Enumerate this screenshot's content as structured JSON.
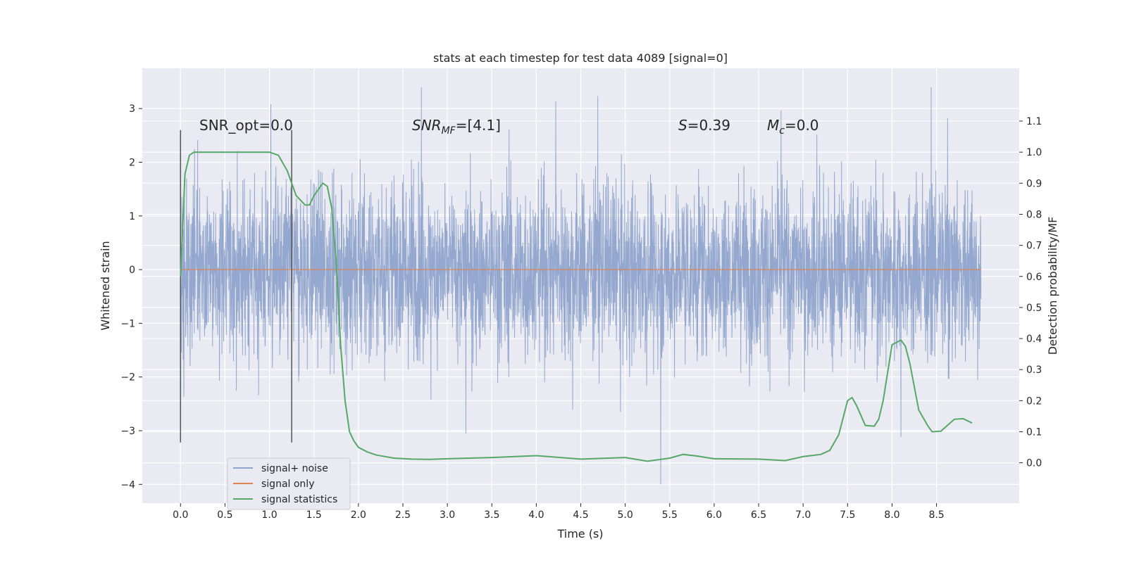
{
  "chart_data": {
    "type": "line",
    "title": "stats at each timestep for test data 4089 [signal=0]",
    "xlabel": "Time (s)",
    "ylabel": "Whitened strain",
    "y2label": "Detection probability/MF",
    "xlim": [
      -0.43,
      9.43
    ],
    "ylim": [
      -4.35,
      3.75
    ],
    "y2lim": [
      -0.13,
      1.27
    ],
    "x_ticks": [
      0.0,
      0.5,
      1.0,
      1.5,
      2.0,
      2.5,
      3.0,
      3.5,
      4.0,
      4.5,
      5.0,
      5.5,
      6.0,
      6.5,
      7.0,
      7.5,
      8.0,
      8.5
    ],
    "x_tick_labels": [
      "0.0",
      "0.5",
      "1.0",
      "1.5",
      "2.0",
      "2.5",
      "3.0",
      "3.5",
      "4.0",
      "4.5",
      "5.0",
      "5.5",
      "6.0",
      "6.5",
      "7.0",
      "7.5",
      "8.0",
      "8.5"
    ],
    "y_ticks": [
      3,
      2,
      1,
      0,
      -1,
      -2,
      -3,
      -4
    ],
    "y_tick_labels": [
      "3",
      "2",
      "1",
      "0",
      "−1",
      "−2",
      "−3",
      "−4"
    ],
    "y2_ticks": [
      1.1,
      1.0,
      0.9,
      0.8,
      0.7,
      0.6,
      0.5,
      0.4,
      0.3,
      0.2,
      0.1,
      0.0
    ],
    "y2_tick_labels": [
      "1.1",
      "1.0",
      "0.9",
      "0.8",
      "0.7",
      "0.6",
      "0.5",
      "0.4",
      "0.3",
      "0.2",
      "0.1",
      "0.0"
    ],
    "grid": true,
    "legend_position": "lower-left",
    "series": [
      {
        "name": "signal+ noise",
        "color": "#8fa4cc",
        "axis": "left",
        "kind": "noise",
        "x_range": [
          0.0,
          9.0
        ],
        "typical_amplitude": 1.6,
        "peak_range": [
          -4.0,
          3.4
        ]
      },
      {
        "name": "signal only",
        "color": "#dd8452",
        "axis": "left",
        "x": [
          0.0,
          9.0
        ],
        "y": [
          0.0,
          0.0
        ]
      },
      {
        "name": "signal statistics",
        "color": "#55a868",
        "axis": "right",
        "x": [
          0.0,
          0.05,
          0.1,
          0.15,
          0.25,
          0.5,
          0.75,
          1.0,
          1.1,
          1.2,
          1.3,
          1.4,
          1.45,
          1.5,
          1.6,
          1.65,
          1.7,
          1.75,
          1.8,
          1.85,
          1.9,
          1.95,
          2.0,
          2.1,
          2.2,
          2.4,
          2.6,
          2.8,
          3.0,
          3.5,
          4.0,
          4.5,
          5.0,
          5.25,
          5.5,
          5.65,
          5.8,
          6.0,
          6.5,
          6.8,
          7.0,
          7.2,
          7.3,
          7.4,
          7.5,
          7.55,
          7.6,
          7.7,
          7.8,
          7.85,
          7.9,
          8.0,
          8.1,
          8.15,
          8.2,
          8.3,
          8.4,
          8.45,
          8.55,
          8.7,
          8.8,
          8.9
        ],
        "y": [
          0.6,
          0.93,
          0.99,
          1.0,
          1.0,
          1.0,
          1.0,
          1.0,
          0.99,
          0.94,
          0.86,
          0.83,
          0.83,
          0.86,
          0.9,
          0.89,
          0.82,
          0.65,
          0.38,
          0.2,
          0.1,
          0.07,
          0.05,
          0.035,
          0.025,
          0.015,
          0.012,
          0.011,
          0.013,
          0.017,
          0.023,
          0.012,
          0.017,
          0.005,
          0.015,
          0.027,
          0.022,
          0.013,
          0.012,
          0.007,
          0.02,
          0.027,
          0.04,
          0.09,
          0.2,
          0.21,
          0.185,
          0.12,
          0.118,
          0.14,
          0.2,
          0.38,
          0.395,
          0.375,
          0.32,
          0.17,
          0.12,
          0.1,
          0.102,
          0.14,
          0.142,
          0.128
        ]
      }
    ],
    "vertical_markers": [
      {
        "x": 0.0,
        "y_top": 2.6,
        "y_bottom": -3.22
      },
      {
        "x": 1.25,
        "y_top": 2.6,
        "y_bottom": -3.22
      }
    ],
    "annotations": [
      {
        "text": "SNR_opt=0.0",
        "x": 0.2,
        "y": 2.6,
        "style": "normal"
      },
      {
        "text": "SNR_MF=[4.1]",
        "x": 2.6,
        "y": 2.6,
        "style": "math"
      },
      {
        "text": "S=0.39",
        "x": 5.6,
        "y": 2.6,
        "style": "math"
      },
      {
        "text": "M_c=0.0",
        "x": 6.6,
        "y": 2.6,
        "style": "math"
      }
    ]
  },
  "legend": {
    "items": [
      {
        "label": "signal+ noise",
        "color": "#8fa4cc"
      },
      {
        "label": "signal only",
        "color": "#dd8452"
      },
      {
        "label": "signal statistics",
        "color": "#55a868"
      }
    ]
  },
  "annotations_text": {
    "snr_opt": "SNR_opt=0.0",
    "snr_mf_main": "SNR",
    "snr_mf_sub": "MF",
    "snr_mf_tail": "=[4.1]",
    "s_main": "S",
    "s_tail": "=0.39",
    "mc_main": "M",
    "mc_sub": "c",
    "mc_tail": "=0.0"
  },
  "colors": {
    "plot_background": "#eaeaf2",
    "grid": "#ffffff",
    "marker_line": "#555555"
  }
}
